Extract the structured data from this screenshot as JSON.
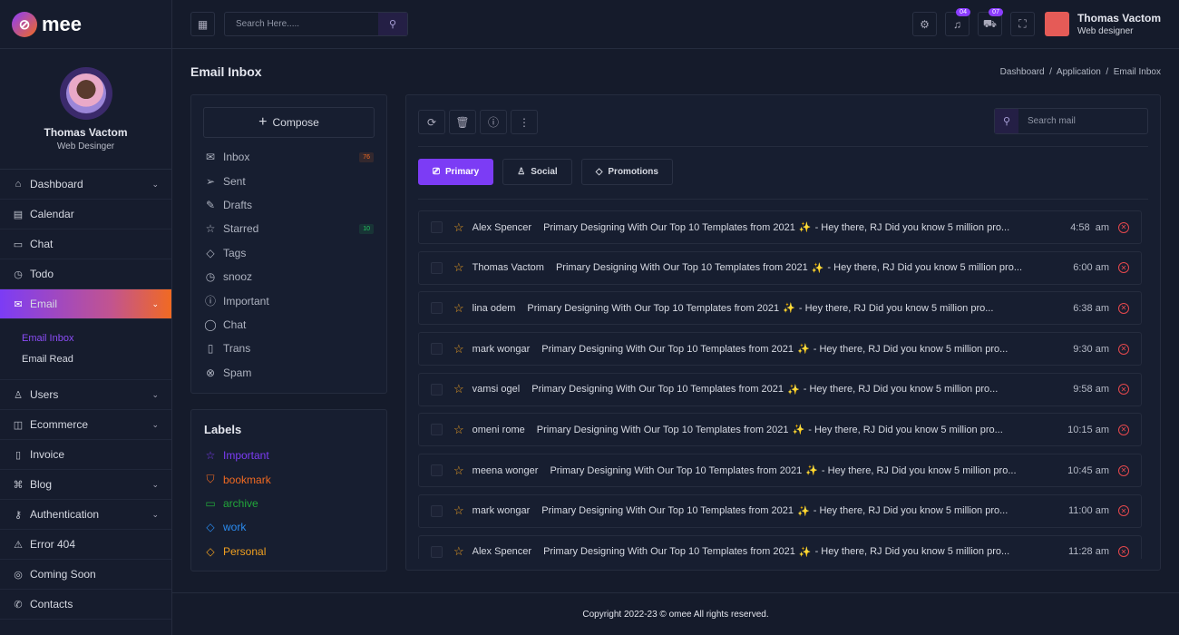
{
  "brand": {
    "name": "mee",
    "accent": "#7c3cf5",
    "gradient_end": "#f16a22"
  },
  "profile": {
    "name": "Thomas Vactom",
    "role": "Web Desinger"
  },
  "nav": [
    {
      "label": "Dashboard",
      "icon": "home-icon",
      "chevron": true
    },
    {
      "label": "Calendar",
      "icon": "calendar-icon",
      "chevron": false
    },
    {
      "label": "Chat",
      "icon": "chat-icon",
      "chevron": false
    },
    {
      "label": "Todo",
      "icon": "clock-icon",
      "chevron": false
    },
    {
      "label": "Email",
      "icon": "mail-icon",
      "chevron": true,
      "active": true,
      "sub": [
        "Email Inbox",
        "Email Read"
      ]
    },
    {
      "label": "Users",
      "icon": "user-icon",
      "chevron": true
    },
    {
      "label": "Ecommerce",
      "icon": "bag-icon",
      "chevron": true
    },
    {
      "label": "Invoice",
      "icon": "file-icon",
      "chevron": false
    },
    {
      "label": "Blog",
      "icon": "command-icon",
      "chevron": true
    },
    {
      "label": "Authentication",
      "icon": "key-icon",
      "chevron": true
    },
    {
      "label": "Error 404",
      "icon": "warning-icon",
      "chevron": false
    },
    {
      "label": "Coming Soon",
      "icon": "watch-icon",
      "chevron": false
    },
    {
      "label": "Contacts",
      "icon": "phone-icon",
      "chevron": false
    }
  ],
  "header": {
    "search_placeholder": "Search Here.....",
    "notifications": "04",
    "cart": "07",
    "user_name": "Thomas Vactom",
    "user_role": "Web designer"
  },
  "page": {
    "title": "Email Inbox",
    "breadcrumb": "Dashboard  /  Application  /  Email Inbox"
  },
  "compose_label": "Compose",
  "folders": [
    {
      "label": "Inbox",
      "icon": "mail-icon",
      "ic": "✉",
      "count": "76",
      "color": "#f16a22"
    },
    {
      "label": "Sent",
      "icon": "send-icon",
      "ic": "➢"
    },
    {
      "label": "Drafts",
      "icon": "edit-icon",
      "ic": "✎"
    },
    {
      "label": "Starred",
      "icon": "star-icon",
      "ic": "☆",
      "count": "10",
      "color": "#22c55e"
    },
    {
      "label": "Tags",
      "icon": "tag-icon",
      "ic": "◇"
    },
    {
      "label": "snooz",
      "icon": "clock-icon",
      "ic": "◷"
    },
    {
      "label": "Important",
      "icon": "alert-circle-icon",
      "ic": "ⓘ"
    },
    {
      "label": "Chat",
      "icon": "chat-icon",
      "ic": "◯"
    },
    {
      "label": "Trans",
      "icon": "trash-icon",
      "ic": "▯"
    },
    {
      "label": "Spam",
      "icon": "x-circle-icon",
      "ic": "⊗"
    }
  ],
  "labels_title": "Labels",
  "labels": [
    {
      "label": "Important",
      "icon": "star-icon",
      "ic": "☆",
      "color": "#7c3cf5"
    },
    {
      "label": "bookmark",
      "icon": "bookmark-icon",
      "ic": "⛉",
      "color": "#f16a22"
    },
    {
      "label": "archive",
      "icon": "archive-icon",
      "ic": "▭",
      "color": "#22a83a"
    },
    {
      "label": "work",
      "icon": "tag-icon",
      "ic": "◇",
      "color": "#2b8cf0"
    },
    {
      "label": "Personal",
      "icon": "tag-icon",
      "ic": "◇",
      "color": "#f0a020"
    }
  ],
  "mail_search_placeholder": "Search mail",
  "tabs": [
    {
      "label": "Primary",
      "icon": "monitor-icon",
      "ic": "⎚",
      "active": true
    },
    {
      "label": "Social",
      "icon": "user-icon",
      "ic": "♙"
    },
    {
      "label": "Promotions",
      "icon": "tag-icon",
      "ic": "◇"
    }
  ],
  "emails": [
    {
      "sender": "Alex Spencer",
      "subject": "Primary Designing With Our Top 10 Templates from 2021",
      "preview": "- Hey there, RJ Did you know 5 million pro...",
      "time": "4:58  am"
    },
    {
      "sender": "Thomas Vactom",
      "subject": "Primary Designing With Our Top 10 Templates from 2021",
      "preview": "- Hey there, RJ Did you know 5 million pro...",
      "time": "6:00 am"
    },
    {
      "sender": "lina odem",
      "subject": "Primary Designing With Our Top 10 Templates from 2021",
      "preview": "- Hey there, RJ Did you know 5 million pro...",
      "time": "6:38 am"
    },
    {
      "sender": "mark wongar",
      "subject": "Primary Designing With Our Top 10 Templates from 2021",
      "preview": "- Hey there, RJ Did you know 5 million pro...",
      "time": "9:30 am"
    },
    {
      "sender": "vamsi ogel",
      "subject": "Primary Designing With Our Top 10 Templates from 2021",
      "preview": "- Hey there, RJ Did you know 5 million pro...",
      "time": "9:58 am"
    },
    {
      "sender": "omeni rome",
      "subject": "Primary Designing With Our Top 10 Templates from 2021",
      "preview": "- Hey there, RJ Did you know 5 million pro...",
      "time": "10:15 am"
    },
    {
      "sender": "meena wonger",
      "subject": "Primary Designing With Our Top 10 Templates from 2021",
      "preview": "- Hey there, RJ Did you know 5 million pro...",
      "time": "10:45 am"
    },
    {
      "sender": "mark wongar",
      "subject": "Primary Designing With Our Top 10 Templates from 2021",
      "preview": "- Hey there, RJ Did you know 5 million pro...",
      "time": "11:00 am"
    },
    {
      "sender": "Alex Spencer",
      "subject": "Primary Designing With Our Top 10 Templates from 2021",
      "preview": "- Hey there, RJ Did you know 5 million pro...",
      "time": "11:28 am"
    }
  ],
  "footer": "Copyright 2022-23 © omee All rights reserved."
}
